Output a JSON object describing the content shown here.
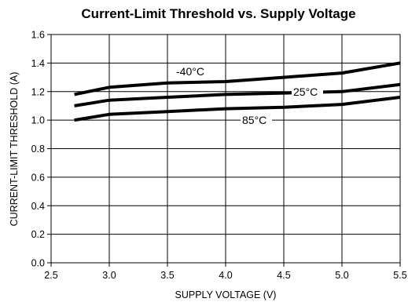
{
  "chart_data": {
    "type": "line",
    "title": "Current-Limit Threshold vs. Supply Voltage",
    "xlabel": "SUPPLY VOLTAGE (V)",
    "ylabel": "CURRENT-LIMIT THRESHOLD (A)",
    "xlim": [
      2.5,
      5.5
    ],
    "ylim": [
      0.0,
      1.6
    ],
    "xticks": [
      "2.5",
      "3.0",
      "3.5",
      "4.0",
      "4.5",
      "5.0",
      "5.5"
    ],
    "yticks": [
      "0.0",
      "0.2",
      "0.4",
      "0.6",
      "0.8",
      "1.0",
      "1.2",
      "1.4",
      "1.6"
    ],
    "grid": true,
    "series": [
      {
        "name": "-40°C",
        "x": [
          2.7,
          3.0,
          3.5,
          4.0,
          4.5,
          5.0,
          5.5
        ],
        "y": [
          1.18,
          1.23,
          1.26,
          1.27,
          1.3,
          1.33,
          1.4
        ]
      },
      {
        "name": "25°C",
        "x": [
          2.7,
          3.0,
          3.5,
          4.0,
          4.5,
          5.0,
          5.5
        ],
        "y": [
          1.1,
          1.14,
          1.16,
          1.18,
          1.19,
          1.2,
          1.25
        ]
      },
      {
        "name": "85°C",
        "x": [
          2.7,
          3.0,
          3.5,
          4.0,
          4.5,
          5.0,
          5.5
        ],
        "y": [
          1.0,
          1.04,
          1.06,
          1.08,
          1.09,
          1.11,
          1.16
        ]
      }
    ]
  }
}
